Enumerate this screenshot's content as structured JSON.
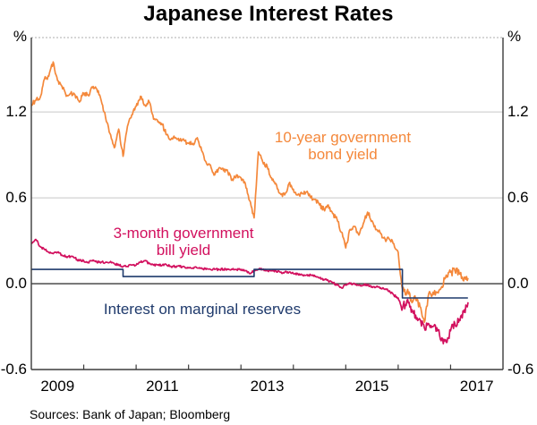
{
  "title": "Japanese Interest Rates",
  "axis": {
    "unit_left": "%",
    "unit_right": "%",
    "y_tick_labels": [
      "-0.6",
      "0.0",
      "0.6",
      "1.2"
    ],
    "x_tick_labels": [
      "2009",
      "2011",
      "2013",
      "2015",
      "2017"
    ]
  },
  "annotations": {
    "bond_line1": "10-year government",
    "bond_line2": "bond yield",
    "bill_line1": "3-month government",
    "bill_line2": "bill yield",
    "reserves": "Interest on marginal reserves"
  },
  "source_note": "Sources: Bank of Japan; Bloomberg",
  "colors": {
    "bond_yield": "#F4883B",
    "bill_yield": "#D2105E",
    "marginal_reserves": "#1F3A6C",
    "gridline": "#C8C8C8",
    "axis_line": "#3B3B3B"
  },
  "chart_data": {
    "type": "line",
    "title": "Japanese Interest Rates",
    "ylabel": "%",
    "ylim": [
      -0.6,
      1.72
    ],
    "yticks": [
      -0.6,
      0.0,
      0.6,
      1.2
    ],
    "grid_y": [
      0.6,
      1.2
    ],
    "zero_line": 0.0,
    "xlim": [
      2009.0,
      2018.0
    ],
    "x_year_boundary_ticks": [
      2010,
      2011,
      2012,
      2013,
      2014,
      2015,
      2016,
      2017
    ],
    "x_year_label_values": [
      2009,
      2011,
      2013,
      2015,
      2017
    ],
    "legend_position": "none",
    "grid": "horizontal-only",
    "series": [
      {
        "name": "10-year government bond yield",
        "color": "#F4883B",
        "x_start": 2009.0,
        "x_step_months": 1,
        "jitter": 0.016,
        "jitter2": {
          "from": 2015.98,
          "amp": 0.028
        },
        "values": [
          1.25,
          1.28,
          1.3,
          1.43,
          1.45,
          1.55,
          1.42,
          1.38,
          1.31,
          1.33,
          1.32,
          1.27,
          1.33,
          1.32,
          1.37,
          1.36,
          1.28,
          1.16,
          1.05,
          0.95,
          1.08,
          0.89,
          1.1,
          1.18,
          1.24,
          1.31,
          1.25,
          1.27,
          1.15,
          1.13,
          1.11,
          1.04,
          1.01,
          1.02,
          1.0,
          1.0,
          0.98,
          0.98,
          1.02,
          0.93,
          0.85,
          0.83,
          0.76,
          0.81,
          0.79,
          0.78,
          0.73,
          0.76,
          0.74,
          0.7,
          0.58,
          0.46,
          0.92,
          0.85,
          0.82,
          0.74,
          0.7,
          0.63,
          0.62,
          0.7,
          0.66,
          0.62,
          0.63,
          0.64,
          0.6,
          0.59,
          0.55,
          0.52,
          0.55,
          0.49,
          0.45,
          0.36,
          0.25,
          0.38,
          0.4,
          0.34,
          0.42,
          0.5,
          0.44,
          0.38,
          0.35,
          0.31,
          0.31,
          0.28,
          0.22,
          -0.04,
          -0.06,
          -0.11,
          -0.11,
          -0.16,
          -0.27,
          -0.07,
          -0.06,
          -0.06,
          -0.02,
          0.06,
          0.08,
          0.09,
          0.07,
          0.02,
          0.04
        ]
      },
      {
        "name": "3-month government bill yield",
        "color": "#D2105E",
        "x_start": 2009.0,
        "x_step_months": 1,
        "jitter": 0.008,
        "jitter2": {
          "from": 2016.05,
          "amp": 0.03
        },
        "values": [
          0.28,
          0.31,
          0.26,
          0.24,
          0.22,
          0.21,
          0.22,
          0.2,
          0.19,
          0.19,
          0.18,
          0.16,
          0.16,
          0.15,
          0.16,
          0.15,
          0.15,
          0.15,
          0.15,
          0.14,
          0.13,
          0.12,
          0.12,
          0.13,
          0.13,
          0.15,
          0.16,
          0.14,
          0.13,
          0.13,
          0.13,
          0.13,
          0.12,
          0.12,
          0.12,
          0.12,
          0.11,
          0.11,
          0.11,
          0.11,
          0.1,
          0.1,
          0.1,
          0.1,
          0.1,
          0.1,
          0.1,
          0.1,
          0.1,
          0.09,
          0.07,
          0.09,
          0.1,
          0.1,
          0.09,
          0.09,
          0.09,
          0.08,
          0.08,
          0.08,
          0.07,
          0.07,
          0.06,
          0.06,
          0.06,
          0.05,
          0.04,
          0.03,
          0.02,
          0.01,
          -0.01,
          -0.03,
          -0.01,
          0.0,
          0.0,
          -0.01,
          -0.01,
          -0.01,
          -0.02,
          -0.02,
          -0.03,
          -0.04,
          -0.05,
          -0.08,
          -0.1,
          -0.17,
          -0.12,
          -0.2,
          -0.22,
          -0.25,
          -0.31,
          -0.28,
          -0.3,
          -0.33,
          -0.38,
          -0.41,
          -0.33,
          -0.28,
          -0.25,
          -0.2,
          -0.13
        ]
      },
      {
        "name": "Interest on marginal reserves",
        "color": "#1F3A6C",
        "type": "step",
        "x": [
          2009.0,
          2010.75,
          2013.25,
          2016.08
        ],
        "y": [
          0.1,
          0.05,
          0.1,
          -0.1
        ],
        "x_end": 2017.33
      }
    ]
  }
}
